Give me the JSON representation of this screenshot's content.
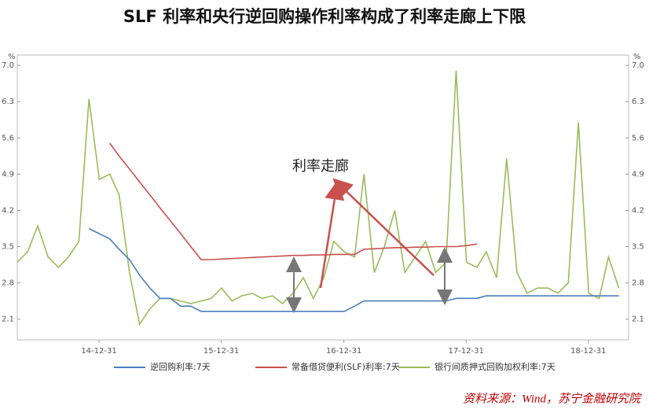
{
  "chart_data": {
    "type": "line",
    "title": "SLF 利率和央行逆回购操作利率构成了利率走廊上下限",
    "annotation": "利率走廊",
    "source": "资料来源：Wind，苏宁金融研究院",
    "y_label": "%",
    "y2_label": "%",
    "x": [
      "14-05-01",
      "14-06-01",
      "14-07-01",
      "14-08-01",
      "14-09-01",
      "14-10-01",
      "14-11-01",
      "14-12-01",
      "15-01-01",
      "15-02-01",
      "15-03-01",
      "15-04-01",
      "15-05-01",
      "15-06-01",
      "15-07-01",
      "15-08-01",
      "15-09-01",
      "15-10-01",
      "15-11-01",
      "15-12-01",
      "16-01-01",
      "16-02-01",
      "16-03-01",
      "16-04-01",
      "16-05-01",
      "16-06-01",
      "16-07-01",
      "16-08-01",
      "16-09-01",
      "16-10-01",
      "16-11-01",
      "16-12-01",
      "17-01-01",
      "17-02-01",
      "17-03-01",
      "17-04-01",
      "17-05-01",
      "17-06-01",
      "17-07-01",
      "17-08-01",
      "17-09-01",
      "17-10-01",
      "17-11-01",
      "17-12-01",
      "18-01-01",
      "18-02-01",
      "18-03-01",
      "18-04-01",
      "18-05-01",
      "18-06-01",
      "18-07-01",
      "18-08-01",
      "18-09-01",
      "18-10-01",
      "18-11-01",
      "18-12-01",
      "19-01-01",
      "19-02-01",
      "19-03-01",
      "19-04-01"
    ],
    "xlim": [
      "14-05-01",
      "19-04-30"
    ],
    "xticks": [
      "14-12-31",
      "15-12-31",
      "16-12-31",
      "17-12-31",
      "18-12-31"
    ],
    "ylim": [
      1.7,
      7.2
    ],
    "yticks": [
      {
        "value": 2.1,
        "label": "2.1"
      },
      {
        "value": 2.8,
        "label": "2.8"
      },
      {
        "value": 3.5,
        "label": "3.5"
      },
      {
        "value": 4.2,
        "label": "4.2"
      },
      {
        "value": 4.9,
        "label": "4.9"
      },
      {
        "value": 5.6,
        "label": "5.6"
      },
      {
        "value": 6.3,
        "label": "6.3"
      },
      {
        "value": 7,
        "label": "7.0"
      }
    ],
    "y2lim": [
      1.7,
      7.2
    ],
    "y2ticks": [
      {
        "value": 2.1,
        "label": "2.1"
      },
      {
        "value": 2.8,
        "label": "2.8"
      },
      {
        "value": 3.5,
        "label": "3.5"
      },
      {
        "value": 4.2,
        "label": "4.2"
      },
      {
        "value": 4.9,
        "label": "4.9"
      },
      {
        "value": 5.6,
        "label": "5.6"
      },
      {
        "value": 6.3,
        "label": "6.3"
      },
      {
        "value": 7,
        "label": "7.0"
      }
    ],
    "series": [
      {
        "name": "逆回购利率:7天",
        "color": "#4a7ebb",
        "values": [
          null,
          null,
          null,
          null,
          null,
          null,
          null,
          3.85,
          3.75,
          3.65,
          3.45,
          3.25,
          2.95,
          2.7,
          2.5,
          2.5,
          2.35,
          2.35,
          2.25,
          2.25,
          2.25,
          2.25,
          2.25,
          2.25,
          2.25,
          2.25,
          2.25,
          2.25,
          2.25,
          2.25,
          2.25,
          2.25,
          2.25,
          2.35,
          2.45,
          2.45,
          2.45,
          2.45,
          2.45,
          2.45,
          2.45,
          2.45,
          2.45,
          2.5,
          2.5,
          2.5,
          2.55,
          2.55,
          2.55,
          2.55,
          2.55,
          2.55,
          2.55,
          2.55,
          2.55,
          2.55,
          2.55,
          2.55,
          2.55,
          2.55
        ]
      },
      {
        "name": "常备借贷便利(SLF)利率:7天",
        "color": "#c9504d",
        "values": [
          null,
          null,
          null,
          null,
          null,
          null,
          null,
          null,
          null,
          5.5,
          5.25,
          5.0,
          4.75,
          4.5,
          4.25,
          4.0,
          3.75,
          3.5,
          3.25,
          3.25,
          3.26,
          3.27,
          3.28,
          3.29,
          3.3,
          3.31,
          3.32,
          3.33,
          3.33,
          3.34,
          3.34,
          3.35,
          3.35,
          3.35,
          3.45,
          3.46,
          3.47,
          3.48,
          3.48,
          3.49,
          3.49,
          3.5,
          3.5,
          3.5,
          3.52,
          3.55,
          null,
          null,
          null,
          null,
          null,
          null,
          null,
          null,
          null,
          null,
          null,
          null,
          null,
          null
        ]
      },
      {
        "name": "银行间质押式回购加权利率:7天",
        "color": "#9bbb59",
        "values": [
          3.2,
          3.4,
          3.9,
          3.3,
          3.1,
          3.3,
          3.6,
          6.35,
          4.8,
          4.9,
          4.5,
          3.0,
          2.0,
          2.3,
          2.5,
          2.5,
          2.45,
          2.4,
          2.45,
          2.5,
          2.7,
          2.45,
          2.55,
          2.6,
          2.5,
          2.55,
          2.4,
          2.6,
          2.9,
          2.5,
          2.9,
          3.6,
          3.4,
          3.3,
          4.9,
          3.0,
          3.5,
          4.2,
          3.0,
          3.3,
          3.6,
          3.0,
          3.2,
          6.9,
          3.2,
          3.1,
          3.4,
          2.9,
          5.2,
          3.0,
          2.6,
          2.7,
          2.7,
          2.6,
          2.8,
          5.9,
          2.6,
          2.5,
          3.3,
          2.7
        ]
      }
    ]
  }
}
